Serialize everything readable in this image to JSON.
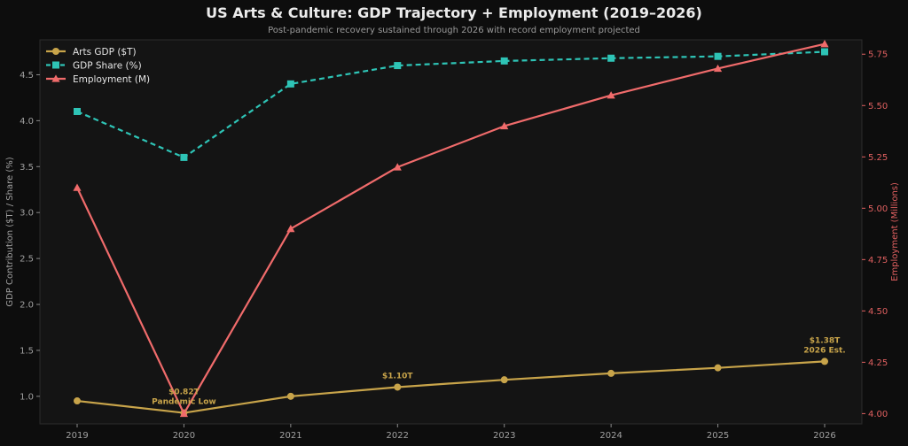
{
  "chart_data": {
    "type": "line",
    "title": "US Arts & Culture: GDP Trajectory + Employment (2019–2026)",
    "subtitle": "Post-pandemic recovery sustained through 2026 with record employment projected",
    "x": [
      "2019",
      "2020",
      "2021",
      "2022",
      "2023",
      "2024",
      "2025",
      "2026"
    ],
    "ylabel": "GDP Contribution ($T) / Share (%)",
    "ylabel_right": "Employment (Millions)",
    "ylim": [
      0.7,
      4.88
    ],
    "ylim_right": [
      3.95,
      5.82
    ],
    "yticks": [
      "1.0",
      "1.5",
      "2.0",
      "2.5",
      "3.0",
      "3.5",
      "4.0",
      "4.5"
    ],
    "yticks_right": [
      "4.00",
      "4.25",
      "4.50",
      "4.75",
      "5.00",
      "5.25",
      "5.50",
      "5.75"
    ],
    "legend_position": "top-left",
    "grid": false,
    "series": [
      {
        "name": "Arts GDP ($T)",
        "axis": "left",
        "color": "#c8a44a",
        "marker": "circle",
        "dash": "solid",
        "values": [
          0.95,
          0.82,
          1.0,
          1.1,
          1.18,
          1.25,
          1.31,
          1.38
        ]
      },
      {
        "name": "GDP Share (%)",
        "axis": "left",
        "color": "#2ec4b6",
        "marker": "square",
        "dash": "dashed",
        "values": [
          4.1,
          3.6,
          4.4,
          4.6,
          4.65,
          4.68,
          4.7,
          4.75
        ]
      },
      {
        "name": "Employment (M)",
        "axis": "right",
        "color": "#f06b6b",
        "marker": "triangle",
        "dash": "solid",
        "values": [
          5.1,
          4.0,
          4.9,
          5.2,
          5.4,
          5.55,
          5.68,
          5.8
        ]
      }
    ],
    "annotations": [
      {
        "x": "2020",
        "lines": [
          "$0.82T",
          "Pandemic Low"
        ]
      },
      {
        "x": "2022",
        "lines": [
          "$1.10T"
        ]
      },
      {
        "x": "2026",
        "lines": [
          "$1.38T",
          "2026 Est."
        ]
      }
    ]
  }
}
